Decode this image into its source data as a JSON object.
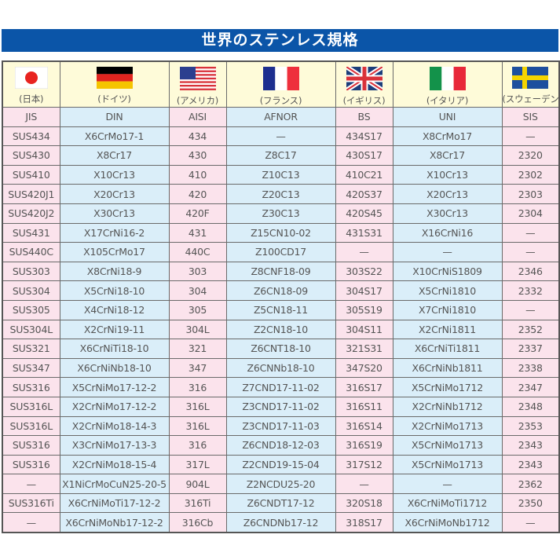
{
  "title": "世界のステンレス規格",
  "colors": {
    "title_bar": "#0b55a8",
    "header_bg": "#fefbd9",
    "pink_column": "#fbe3ec",
    "blue_column": "#daeef9"
  },
  "countries": [
    {
      "flag": "japan-flag-icon",
      "label": "(日本)"
    },
    {
      "flag": "germany-flag-icon",
      "label": "(ドイツ)"
    },
    {
      "flag": "usa-flag-icon",
      "label": "(アメリカ)"
    },
    {
      "flag": "france-flag-icon",
      "label": "(フランス)"
    },
    {
      "flag": "uk-flag-icon",
      "label": "(イギリス)"
    },
    {
      "flag": "italy-flag-icon",
      "label": "(イタリア)"
    },
    {
      "flag": "sweden-flag-icon",
      "label": "(スウェーデン)"
    }
  ],
  "columns": [
    "JIS",
    "DIN",
    "AISI",
    "AFNOR",
    "BS",
    "UNI",
    "SIS"
  ],
  "rows": [
    [
      "SUS434",
      "X6CrMo17-1",
      "434",
      "—",
      "434S17",
      "X8CrMo17",
      "—"
    ],
    [
      "SUS430",
      "X8Cr17",
      "430",
      "Z8C17",
      "430S17",
      "X8Cr17",
      "2320"
    ],
    [
      "SUS410",
      "X10Cr13",
      "410",
      "Z10C13",
      "410C21",
      "X10Cr13",
      "2302"
    ],
    [
      "SUS420J1",
      "X20Cr13",
      "420",
      "Z20C13",
      "420S37",
      "X20Cr13",
      "2303"
    ],
    [
      "SUS420J2",
      "X30Cr13",
      "420F",
      "Z30C13",
      "420S45",
      "X30Cr13",
      "2304"
    ],
    [
      "SUS431",
      "X17CrNi16-2",
      "431",
      "Z15CN10-02",
      "431S31",
      "X16CrNi16",
      "—"
    ],
    [
      "SUS440C",
      "X105CrMo17",
      "440C",
      "Z100CD17",
      "—",
      "—",
      "—"
    ],
    [
      "SUS303",
      "X8CrNi18-9",
      "303",
      "Z8CNF18-09",
      "303S22",
      "X10CrNiS1809",
      "2346"
    ],
    [
      "SUS304",
      "X5CrNi18-10",
      "304",
      "Z6CN18-09",
      "304S17",
      "X5CrNi1810",
      "2332"
    ],
    [
      "SUS305",
      "X4CrNi18-12",
      "305",
      "Z5CN18-11",
      "305S19",
      "X7CrNi1810",
      "—"
    ],
    [
      "SUS304L",
      "X2CrNi19-11",
      "304L",
      "Z2CN18-10",
      "304S11",
      "X2CrNi1811",
      "2352"
    ],
    [
      "SUS321",
      "X6CrNiTi18-10",
      "321",
      "Z6CNT18-10",
      "321S31",
      "X6CrNiTi1811",
      "2337"
    ],
    [
      "SUS347",
      "X6CrNiNb18-10",
      "347",
      "Z6CNNb18-10",
      "347S20",
      "X6CrNiNb1811",
      "2338"
    ],
    [
      "SUS316",
      "X5CrNiMo17-12-2",
      "316",
      "Z7CND17-11-02",
      "316S17",
      "X5CrNiMo1712",
      "2347"
    ],
    [
      "SUS316L",
      "X2CrNiMo17-12-2",
      "316L",
      "Z3CND17-11-02",
      "316S11",
      "X2CrNiNb1712",
      "2348"
    ],
    [
      "SUS316L",
      "X2CrNiMo18-14-3",
      "316L",
      "Z3CND17-11-03",
      "316S14",
      "X2CrNiMo1713",
      "2353"
    ],
    [
      "SUS316",
      "X3CrNiMo17-13-3",
      "316",
      "Z6CND18-12-03",
      "316S19",
      "X5CrNiMo1713",
      "2343"
    ],
    [
      "SUS316",
      "X2CrNiMo18-15-4",
      "317L",
      "Z2CND19-15-04",
      "317S12",
      "X5CrNiMo1713",
      "2343"
    ],
    [
      "—",
      "X1NiCrMoCuN25-20-5",
      "904L",
      "Z2NCDU25-20",
      "—",
      "—",
      "2362"
    ],
    [
      "SUS316Ti",
      "X6CrNiMoTi17-12-2",
      "316Ti",
      "Z6CNDT17-12",
      "320S18",
      "X6CrNiMoTi1712",
      "2350"
    ],
    [
      "—",
      "X6CrNiMoNb17-12-2",
      "316Cb",
      "Z6CNDNb17-12",
      "318S17",
      "X6CrNiMoNb1712",
      "—"
    ]
  ]
}
